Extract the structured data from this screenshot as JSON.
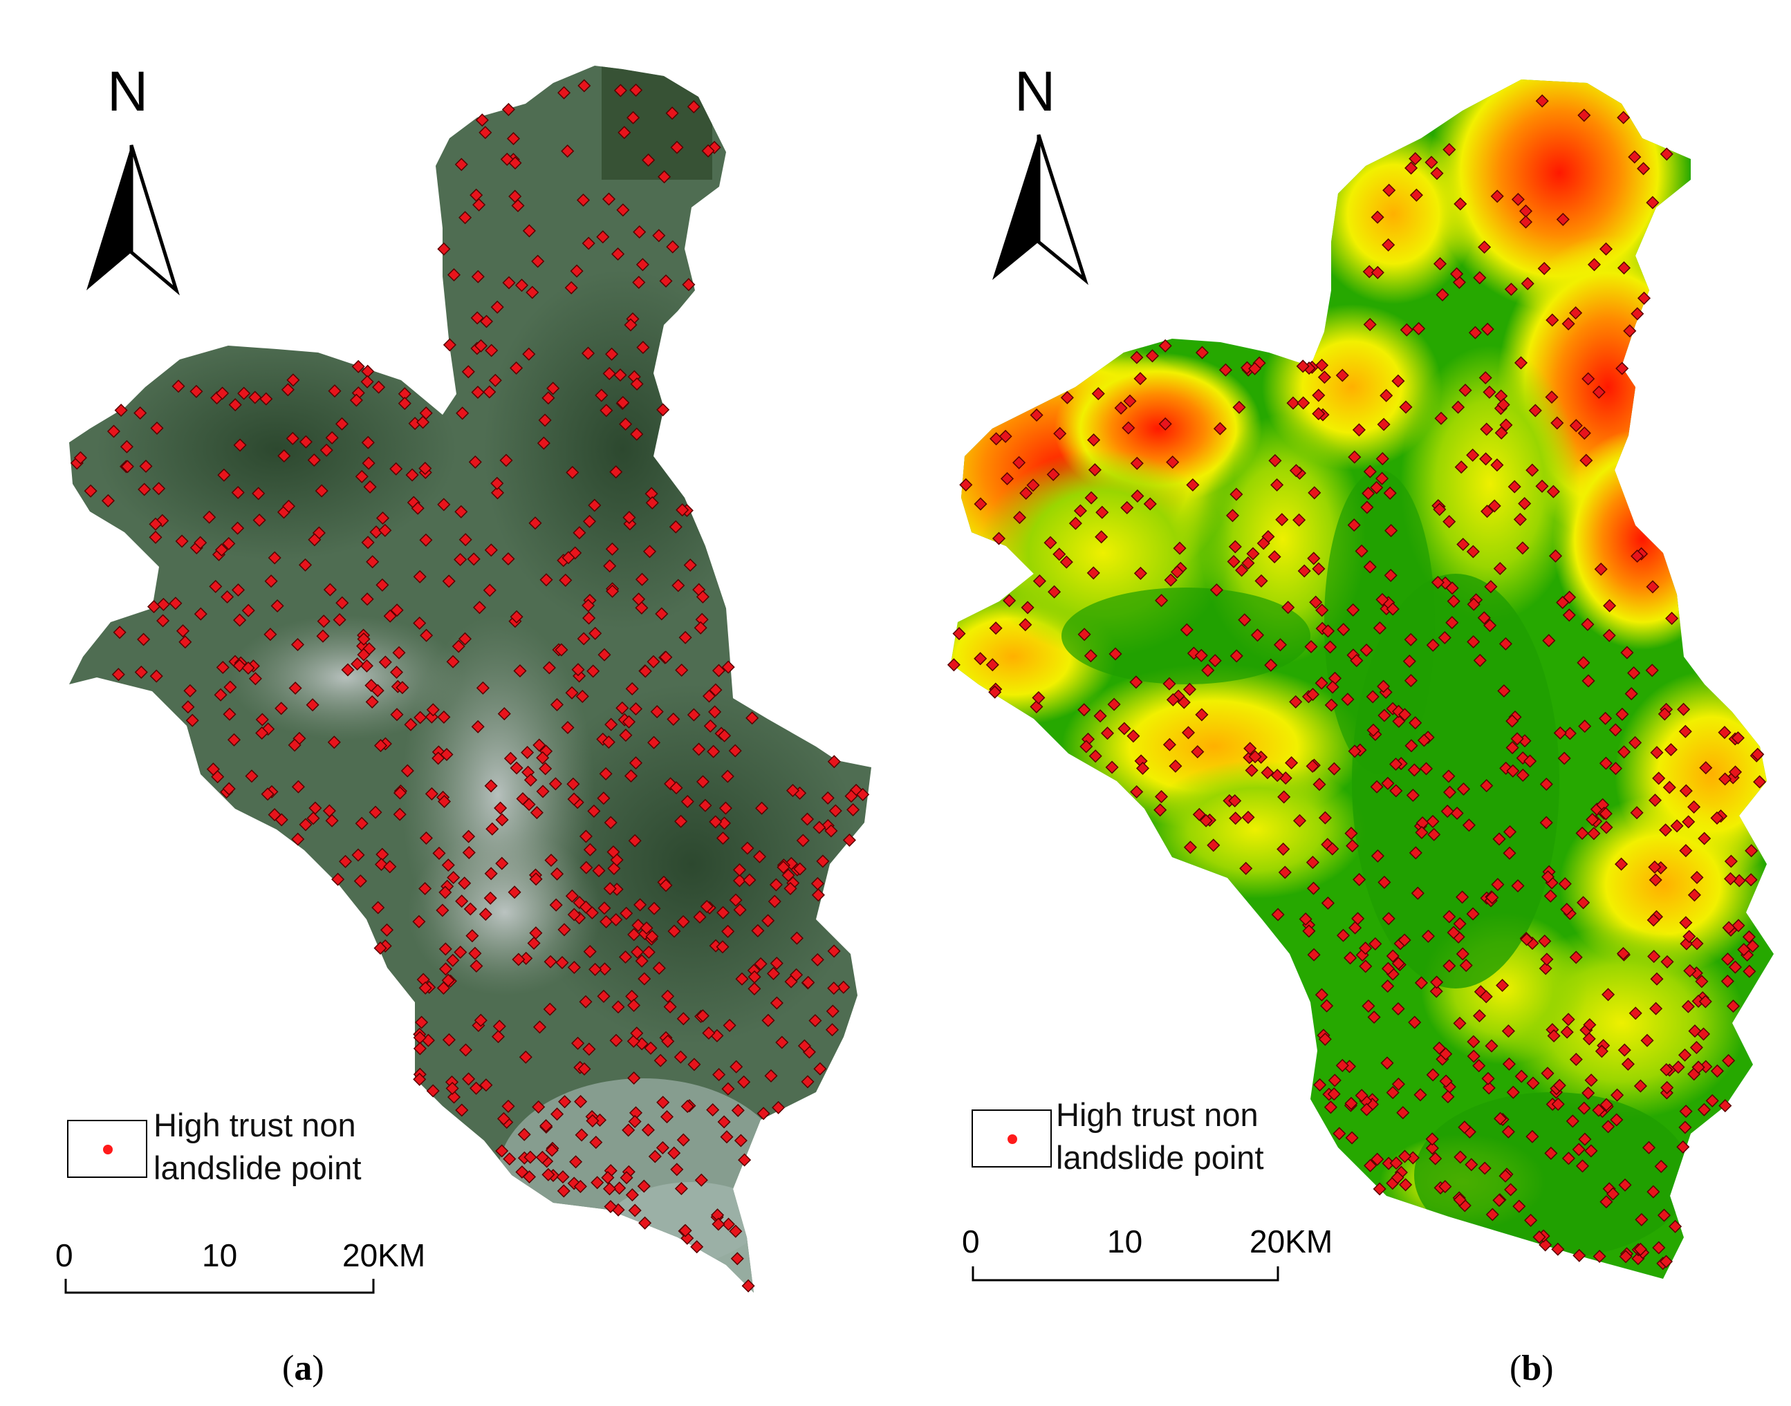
{
  "panels": [
    {
      "id": "a",
      "caption_open": "(",
      "caption_letter": "a",
      "caption_close": ")",
      "map_style": "satellite imagery",
      "north_label": "N",
      "legend": {
        "line1": "High trust non",
        "line2": "landslide point",
        "marker_color": "#ff1a1a"
      },
      "scale": {
        "tick0": "0",
        "tick1": "10",
        "tick2": "20KM"
      }
    },
    {
      "id": "b",
      "caption_open": "(",
      "caption_letter": "b",
      "caption_close": ")",
      "map_style": "elevation (green-yellow-red)",
      "north_label": "N",
      "legend": {
        "line1": "High trust non",
        "line2": "landslide point",
        "marker_color": "#ff1a1a"
      },
      "scale": {
        "tick0": "0",
        "tick1": "10",
        "tick2": "20KM"
      }
    }
  ],
  "colors": {
    "point_fill": "#e8141c",
    "point_stroke": "#5a0000",
    "satellite_base": "#4d6a4f",
    "elevation_low": "#1fa400",
    "elevation_mid": "#f2f000",
    "elevation_high": "#ff1800"
  }
}
